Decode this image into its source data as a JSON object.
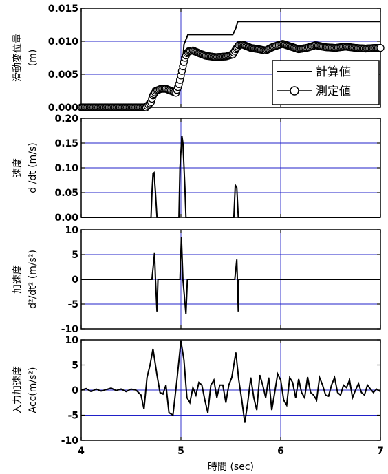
{
  "chart_data": [
    {
      "type": "line",
      "ylabel_jp": "滑動変位量",
      "ylabel_unit": "(m)",
      "ylim": [
        0,
        0.015
      ],
      "xlim": [
        4,
        7
      ],
      "yticks": [
        "0.000",
        "0.005",
        "0.010",
        "0.015"
      ],
      "grid": true,
      "legend": {
        "position": "lower-right",
        "entries": [
          "計算値",
          "測定値"
        ]
      },
      "series": [
        {
          "name": "計算値",
          "x": [
            4.0,
            4.7,
            4.72,
            4.76,
            5.0,
            5.03,
            5.07,
            5.52,
            5.55,
            5.57,
            7.0
          ],
          "y": [
            0.0,
            0.0,
            0.0028,
            0.0028,
            0.0028,
            0.0095,
            0.011,
            0.011,
            0.012,
            0.013,
            0.013
          ]
        },
        {
          "name": "測定値",
          "x": [
            4.0,
            4.4,
            4.65,
            4.7,
            4.72,
            4.75,
            4.8,
            4.85,
            4.9,
            4.95,
            4.98,
            5.0,
            5.02,
            5.04,
            5.06,
            5.08,
            5.12,
            5.18,
            5.25,
            5.35,
            5.45,
            5.52,
            5.55,
            5.58,
            5.62,
            5.7,
            5.78,
            5.85,
            5.93,
            6.02,
            6.1,
            6.18,
            6.26,
            6.35,
            6.45,
            6.55,
            6.65,
            6.75,
            6.85,
            6.95,
            7.0
          ],
          "y": [
            0.0,
            0.0,
            0.0,
            0.0008,
            0.0018,
            0.0025,
            0.0028,
            0.0028,
            0.0025,
            0.0022,
            0.0035,
            0.0048,
            0.0062,
            0.0075,
            0.0082,
            0.0085,
            0.0086,
            0.0082,
            0.0078,
            0.0076,
            0.0077,
            0.008,
            0.0088,
            0.0094,
            0.0095,
            0.009,
            0.0088,
            0.0086,
            0.0092,
            0.0096,
            0.0092,
            0.0088,
            0.009,
            0.0094,
            0.0091,
            0.009,
            0.0092,
            0.009,
            0.0089,
            0.009,
            0.009
          ]
        }
      ]
    },
    {
      "type": "line",
      "ylabel_jp": "速度",
      "ylabel_unit": "d /dt (m/s)",
      "ylim": [
        0,
        0.2
      ],
      "xlim": [
        4,
        7
      ],
      "yticks": [
        "0.00",
        "0.05",
        "0.10",
        "0.15",
        "0.20"
      ],
      "grid": true,
      "series": [
        {
          "x": [
            4.0,
            4.7,
            4.71,
            4.72,
            4.73,
            4.745,
            4.76,
            4.98,
            4.99,
            5.01,
            5.02,
            5.04,
            5.05,
            5.53,
            5.545,
            5.56,
            5.575,
            7.0
          ],
          "y": [
            0.0,
            0.0,
            0.05,
            0.088,
            0.09,
            0.05,
            0.0,
            0.0,
            0.1,
            0.165,
            0.15,
            0.06,
            0.0,
            0.0,
            0.065,
            0.06,
            0.0,
            0.0
          ]
        }
      ]
    },
    {
      "type": "line",
      "ylabel_jp": "加速度",
      "ylabel_unit": "d²/dt² (m/s²)",
      "ylim": [
        -10,
        10
      ],
      "xlim": [
        4,
        7
      ],
      "yticks": [
        "-10",
        "-5",
        "0",
        "5",
        "10"
      ],
      "grid": true,
      "series": [
        {
          "x": [
            4.0,
            4.7,
            4.71,
            4.735,
            4.745,
            4.76,
            4.77,
            4.98,
            4.99,
            5.005,
            5.02,
            5.05,
            5.065,
            5.53,
            5.54,
            5.56,
            5.575,
            5.58,
            7.0
          ],
          "y": [
            0.0,
            0.0,
            0.0,
            5.3,
            0.0,
            -6.5,
            0.0,
            0.0,
            0.0,
            8.5,
            0.0,
            -7.0,
            0.0,
            0.0,
            0.0,
            4.0,
            -6.5,
            0.0,
            0.0
          ]
        }
      ]
    },
    {
      "type": "line",
      "ylabel_jp": "入力加速度",
      "ylabel_unit": "Acc(m/s²)",
      "xlabel": "時間 (sec)",
      "ylim": [
        -10,
        10
      ],
      "xlim": [
        4,
        7
      ],
      "yticks": [
        "-10",
        "-5",
        "0",
        "5",
        "10"
      ],
      "xticks": [
        "4",
        "5",
        "6",
        "7"
      ],
      "grid": true,
      "series": [
        {
          "x": [
            4.0,
            4.05,
            4.1,
            4.15,
            4.2,
            4.25,
            4.3,
            4.35,
            4.4,
            4.45,
            4.5,
            4.55,
            4.6,
            4.63,
            4.66,
            4.69,
            4.72,
            4.76,
            4.79,
            4.82,
            4.85,
            4.88,
            4.92,
            4.96,
            5.0,
            5.03,
            5.06,
            5.09,
            5.12,
            5.15,
            5.18,
            5.21,
            5.24,
            5.27,
            5.3,
            5.33,
            5.36,
            5.39,
            5.42,
            5.45,
            5.48,
            5.51,
            5.55,
            5.58,
            5.61,
            5.64,
            5.67,
            5.7,
            5.73,
            5.76,
            5.79,
            5.82,
            5.85,
            5.88,
            5.91,
            5.94,
            5.97,
            6.0,
            6.03,
            6.06,
            6.09,
            6.12,
            6.15,
            6.18,
            6.21,
            6.24,
            6.27,
            6.3,
            6.33,
            6.36,
            6.39,
            6.42,
            6.45,
            6.48,
            6.51,
            6.54,
            6.57,
            6.6,
            6.63,
            6.66,
            6.69,
            6.72,
            6.75,
            6.78,
            6.81,
            6.84,
            6.87,
            6.9,
            6.93,
            6.96,
            7.0
          ],
          "y": [
            0.0,
            0.3,
            -0.3,
            0.2,
            -0.2,
            0.1,
            0.4,
            -0.1,
            0.2,
            -0.3,
            0.2,
            0.0,
            -1.0,
            -3.8,
            2.5,
            5.0,
            8.2,
            3.0,
            -0.5,
            -0.8,
            1.0,
            -4.5,
            -5.0,
            2.0,
            9.8,
            6.0,
            -1.5,
            -2.5,
            0.5,
            -1.0,
            1.5,
            1.0,
            -2.0,
            -4.5,
            1.0,
            2.0,
            -1.5,
            1.0,
            1.0,
            -2.5,
            1.0,
            2.5,
            7.5,
            2.0,
            -2.0,
            -6.5,
            -2.5,
            2.5,
            -1.5,
            -4.0,
            3.0,
            1.0,
            -1.5,
            2.5,
            -4.0,
            -0.5,
            3.2,
            2.0,
            -2.0,
            -3.0,
            2.5,
            1.5,
            -1.5,
            2.2,
            -0.5,
            -1.5,
            2.6,
            -0.5,
            -1.0,
            -2.0,
            2.5,
            1.0,
            -1.0,
            -1.2,
            1.0,
            2.5,
            -0.5,
            -1.0,
            1.0,
            0.5,
            2.0,
            -1.5,
            0.0,
            1.3,
            -0.5,
            -1.0,
            1.0,
            0.2,
            -0.5,
            0.2,
            -0.3
          ]
        }
      ]
    }
  ]
}
